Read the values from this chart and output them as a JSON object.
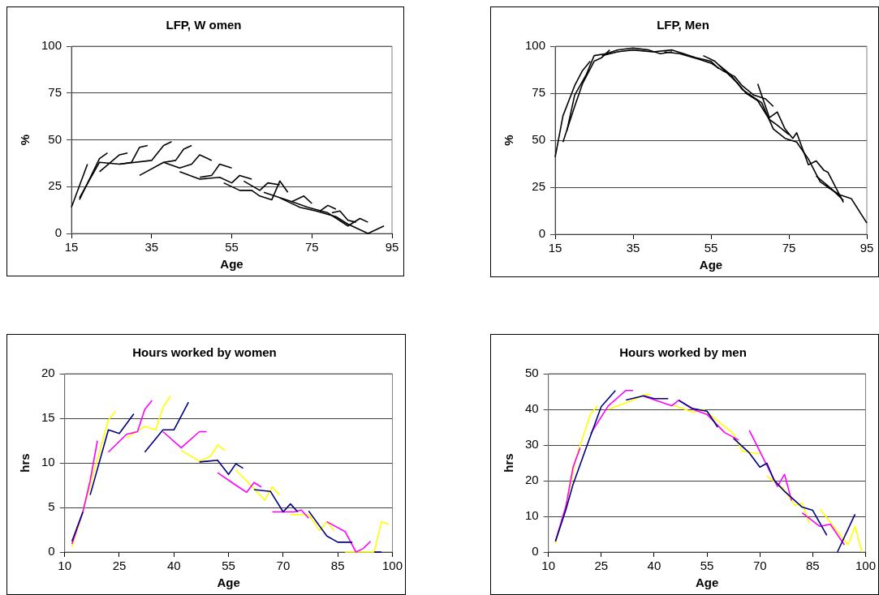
{
  "chart_data": [
    {
      "type": "line",
      "title": "LFP, W omen",
      "xlabel": "Age",
      "ylabel": "%",
      "xlim": [
        15,
        95
      ],
      "xticks": [
        15,
        35,
        55,
        75,
        95
      ],
      "ylim": [
        0,
        100
      ],
      "yticks": [
        0,
        25,
        50,
        75,
        100
      ],
      "grid": "y",
      "legend": false,
      "marker": "none",
      "line_style": "solid",
      "series": [
        {
          "color": "#000000",
          "x": [
            15,
            19
          ],
          "values": [
            14,
            37
          ]
        },
        {
          "color": "#000000",
          "x": [
            17,
            22,
            24
          ],
          "values": [
            18,
            40,
            43
          ]
        },
        {
          "color": "#000000",
          "x": [
            17,
            22,
            27,
            35,
            38,
            40
          ],
          "values": [
            19,
            38,
            37,
            39,
            47,
            49
          ]
        },
        {
          "color": "#000000",
          "x": [
            22,
            27,
            29
          ],
          "values": [
            33,
            42,
            43
          ]
        },
        {
          "color": "#000000",
          "x": [
            27,
            30,
            32,
            34
          ],
          "values": [
            37,
            38,
            46,
            47
          ]
        },
        {
          "color": "#000000",
          "x": [
            32,
            38,
            42,
            45,
            47,
            50
          ],
          "values": [
            31,
            38,
            35,
            37,
            42,
            39
          ]
        },
        {
          "color": "#000000",
          "x": [
            38,
            41,
            43,
            45
          ],
          "values": [
            38,
            39,
            45,
            47
          ]
        },
        {
          "color": "#000000",
          "x": [
            42,
            47,
            52,
            55,
            57,
            60
          ],
          "values": [
            33,
            29,
            30,
            27,
            31,
            29
          ]
        },
        {
          "color": "#000000",
          "x": [
            47,
            50,
            52,
            55
          ],
          "values": [
            30,
            31,
            37,
            35
          ]
        },
        {
          "color": "#000000",
          "x": [
            53,
            57,
            60,
            62,
            65,
            67,
            69
          ],
          "values": [
            27,
            23,
            23,
            20,
            18,
            28,
            22
          ]
        },
        {
          "color": "#000000",
          "x": [
            58,
            62,
            64,
            67
          ],
          "values": [
            28,
            23,
            27,
            26
          ]
        },
        {
          "color": "#000000",
          "x": [
            63,
            70,
            74,
            79,
            84,
            87,
            89
          ],
          "values": [
            22,
            17,
            14,
            11,
            4,
            8,
            6
          ]
        },
        {
          "color": "#000000",
          "x": [
            67,
            72,
            76,
            81,
            84,
            89,
            93
          ],
          "values": [
            19,
            14,
            12,
            9,
            5,
            0,
            4
          ]
        },
        {
          "color": "#000000",
          "x": [
            70,
            73,
            75
          ],
          "values": [
            17,
            20,
            16
          ]
        },
        {
          "color": "#000000",
          "x": [
            77,
            79,
            81
          ],
          "values": [
            12,
            15,
            13
          ]
        },
        {
          "color": "#000000",
          "x": [
            80,
            82,
            84,
            86
          ],
          "values": [
            11,
            12,
            7,
            6
          ]
        }
      ]
    },
    {
      "type": "line",
      "title": "LFP, Men",
      "xlabel": "Age",
      "ylabel": "%",
      "xlim": [
        15,
        95
      ],
      "xticks": [
        15,
        35,
        55,
        75,
        95
      ],
      "ylim": [
        0,
        100
      ],
      "yticks": [
        0,
        25,
        50,
        75,
        100
      ],
      "grid": "y",
      "legend": false,
      "marker": "none",
      "line_style": "solid",
      "series": [
        {
          "color": "#000000",
          "x": [
            15,
            17,
            20,
            22,
            24
          ],
          "values": [
            41,
            63,
            79,
            87,
            92
          ]
        },
        {
          "color": "#000000",
          "x": [
            17,
            20,
            22,
            25,
            27,
            29
          ],
          "values": [
            49,
            68,
            80,
            92,
            94,
            98
          ]
        },
        {
          "color": "#000000",
          "x": [
            18,
            20,
            23,
            25,
            28,
            31,
            35,
            39,
            42,
            45
          ],
          "values": [
            55,
            74,
            85,
            95,
            96,
            98,
            99,
            98,
            96,
            97
          ]
        },
        {
          "color": "#000000",
          "x": [
            27,
            31,
            35,
            40,
            45,
            48,
            51,
            55,
            57
          ],
          "values": [
            95,
            97,
            98,
            97,
            98,
            96,
            94,
            92,
            88
          ]
        },
        {
          "color": "#000000",
          "x": [
            43,
            47,
            52,
            55,
            58,
            61,
            63,
            66,
            69,
            71
          ],
          "values": [
            97,
            96,
            93,
            91,
            87,
            84,
            79,
            74,
            72,
            68
          ]
        },
        {
          "color": "#000000",
          "x": [
            53,
            56,
            59,
            62,
            64,
            67,
            70,
            72,
            75
          ],
          "values": [
            95,
            92,
            86,
            80,
            75,
            71,
            61,
            58,
            53
          ]
        },
        {
          "color": "#000000",
          "x": [
            57,
            60,
            63,
            68,
            71,
            74,
            77,
            80,
            83,
            85,
            88,
            91,
            95
          ],
          "values": [
            90,
            85,
            77,
            70,
            56,
            51,
            49,
            40,
            28,
            25,
            21,
            19,
            6
          ]
        },
        {
          "color": "#000000",
          "x": [
            67,
            70,
            72,
            74,
            76,
            77,
            80,
            82,
            84,
            85,
            89
          ],
          "values": [
            80,
            62,
            65,
            56,
            51,
            54,
            37,
            39,
            34,
            33,
            17
          ]
        },
        {
          "color": "#000000",
          "x": [
            82,
            86,
            89
          ],
          "values": [
            31,
            24,
            18
          ]
        }
      ]
    },
    {
      "type": "line",
      "title": "Hours worked by women",
      "xlabel": "Age",
      "ylabel": "hrs",
      "xlim": [
        10,
        100
      ],
      "xticks": [
        10,
        25,
        40,
        55,
        70,
        85,
        100
      ],
      "ylim": [
        0,
        20
      ],
      "yticks": [
        0,
        5,
        10,
        15,
        20
      ],
      "grid": "y",
      "legend": false,
      "marker": "none",
      "line_style": "solid",
      "series": [
        {
          "color": "#000080",
          "x": [
            12,
            15
          ],
          "values": [
            1.2,
            4.5
          ]
        },
        {
          "color": "#000080",
          "x": [
            17,
            22,
            25,
            29
          ],
          "values": [
            6.4,
            13.7,
            13.3,
            15.5
          ]
        },
        {
          "color": "#000080",
          "x": [
            32,
            37,
            40,
            44
          ],
          "values": [
            11.2,
            13.7,
            13.7,
            16.8
          ]
        },
        {
          "color": "#000080",
          "x": [
            47,
            52,
            55,
            57,
            59
          ],
          "values": [
            10.1,
            10.3,
            8.7,
            9.9,
            9.4
          ]
        },
        {
          "color": "#000080",
          "x": [
            62,
            66.5,
            70,
            72,
            74
          ],
          "values": [
            7.0,
            6.8,
            4.5,
            5.4,
            4.5
          ]
        },
        {
          "color": "#000080",
          "x": [
            77,
            82,
            85,
            89
          ],
          "values": [
            4.6,
            1.8,
            1.1,
            1.1
          ]
        },
        {
          "color": "#000080",
          "x": [
            95,
            97
          ],
          "values": [
            0,
            0
          ]
        },
        {
          "color": "#ff00ff",
          "x": [
            12,
            15,
            17,
            19
          ],
          "values": [
            0.9,
            4.5,
            8,
            12.5
          ]
        },
        {
          "color": "#ff00ff",
          "x": [
            22,
            27,
            30,
            32,
            34
          ],
          "values": [
            11.2,
            13.2,
            13.5,
            16,
            17
          ]
        },
        {
          "color": "#ff00ff",
          "x": [
            37,
            42,
            47,
            49
          ],
          "values": [
            13.5,
            11.7,
            13.5,
            13.5
          ]
        },
        {
          "color": "#ff00ff",
          "x": [
            52,
            57,
            60,
            62,
            64
          ],
          "values": [
            8.9,
            7.5,
            6.7,
            7.8,
            7.3
          ]
        },
        {
          "color": "#ff00ff",
          "x": [
            67,
            73,
            75,
            77
          ],
          "values": [
            4.5,
            4.5,
            4.7,
            3.8
          ]
        },
        {
          "color": "#ff00ff",
          "x": [
            82,
            87,
            90,
            92,
            94
          ],
          "values": [
            3.4,
            2.3,
            0,
            0.4,
            1.2
          ]
        },
        {
          "color": "#ffff00",
          "x": [
            12,
            15,
            18,
            22,
            24
          ],
          "values": [
            0.6,
            4.5,
            9,
            14.8,
            15.8
          ]
        },
        {
          "color": "#ffff00",
          "x": [
            27,
            32,
            35,
            37,
            39
          ],
          "values": [
            12.8,
            14.1,
            13.7,
            16.2,
            17.5
          ]
        },
        {
          "color": "#ffff00",
          "x": [
            42,
            47,
            50,
            52,
            54
          ],
          "values": [
            11.4,
            10.2,
            10.7,
            12.0,
            11.4
          ]
        },
        {
          "color": "#ffff00",
          "x": [
            57,
            62,
            65,
            67,
            69
          ],
          "values": [
            9.2,
            7.1,
            5.8,
            7.3,
            6.4
          ]
        },
        {
          "color": "#ffff00",
          "x": [
            72,
            77,
            80,
            82,
            84
          ],
          "values": [
            4.2,
            4.2,
            2.4,
            3.4,
            2.4
          ]
        },
        {
          "color": "#ffff00",
          "x": [
            87,
            95,
            97,
            99
          ],
          "values": [
            0,
            0,
            3.4,
            3.1
          ]
        }
      ]
    },
    {
      "type": "line",
      "title": "Hours worked by men",
      "xlabel": "Age",
      "ylabel": "hrs",
      "xlim": [
        10,
        100
      ],
      "xticks": [
        10,
        25,
        40,
        55,
        70,
        85,
        100
      ],
      "ylim": [
        0,
        50
      ],
      "yticks": [
        0,
        10,
        20,
        30,
        40,
        50
      ],
      "grid": "y",
      "legend": false,
      "marker": "none",
      "line_style": "solid",
      "series": [
        {
          "color": "#000080",
          "x": [
            12,
            15,
            17,
            21,
            25,
            27,
            29
          ],
          "values": [
            3,
            12,
            19,
            30,
            40.8,
            43,
            45.3
          ]
        },
        {
          "color": "#000080",
          "x": [
            32,
            37,
            40,
            44
          ],
          "values": [
            42.6,
            43.8,
            43,
            43
          ]
        },
        {
          "color": "#000080",
          "x": [
            47,
            51,
            55,
            57,
            58
          ],
          "values": [
            42.5,
            40.2,
            39.5,
            36.6,
            35
          ]
        },
        {
          "color": "#000080",
          "x": [
            62.5,
            67,
            70,
            72,
            74,
            77,
            82,
            85,
            89
          ],
          "values": [
            31.9,
            27.8,
            23.8,
            24.9,
            20.2,
            17,
            12.6,
            11.7,
            4.7
          ]
        },
        {
          "color": "#000080",
          "x": [
            92,
            97
          ],
          "values": [
            0,
            10.6
          ]
        },
        {
          "color": "#ff00ff",
          "x": [
            12,
            15,
            17,
            19
          ],
          "values": [
            3,
            13,
            23.8,
            29.2
          ]
        },
        {
          "color": "#ff00ff",
          "x": [
            22,
            27,
            32,
            34
          ],
          "values": [
            33.2,
            41,
            45.3,
            45.3
          ]
        },
        {
          "color": "#ff00ff",
          "x": [
            37,
            45,
            47,
            51,
            55,
            60,
            64
          ],
          "values": [
            43.7,
            41,
            42.6,
            40,
            38.6,
            33.5,
            31.4
          ]
        },
        {
          "color": "#ff00ff",
          "x": [
            67,
            75,
            77,
            79
          ],
          "values": [
            34.1,
            18.4,
            21.8,
            14.4
          ]
        },
        {
          "color": "#ff00ff",
          "x": [
            82,
            87,
            90,
            94
          ],
          "values": [
            11,
            7.2,
            7.8,
            2
          ]
        },
        {
          "color": "#ffff00",
          "x": [
            12,
            15,
            18,
            22,
            24
          ],
          "values": [
            2.4,
            13,
            27,
            38.8,
            41
          ]
        },
        {
          "color": "#ffff00",
          "x": [
            27,
            33,
            37,
            39
          ],
          "values": [
            40,
            42.2,
            44,
            44.2
          ]
        },
        {
          "color": "#ffff00",
          "x": [
            45,
            51,
            54,
            62.5,
            65,
            69,
            70
          ],
          "values": [
            41.3,
            39.2,
            40,
            33.2,
            28.3,
            27.6,
            27.6
          ]
        },
        {
          "color": "#ffff00",
          "x": [
            72,
            76.5,
            80,
            82,
            84
          ],
          "values": [
            21.3,
            18,
            13,
            13.7,
            8.1
          ]
        },
        {
          "color": "#ffff00",
          "x": [
            87,
            95,
            97,
            99
          ],
          "values": [
            12.1,
            2,
            7.2,
            0
          ]
        }
      ]
    }
  ]
}
